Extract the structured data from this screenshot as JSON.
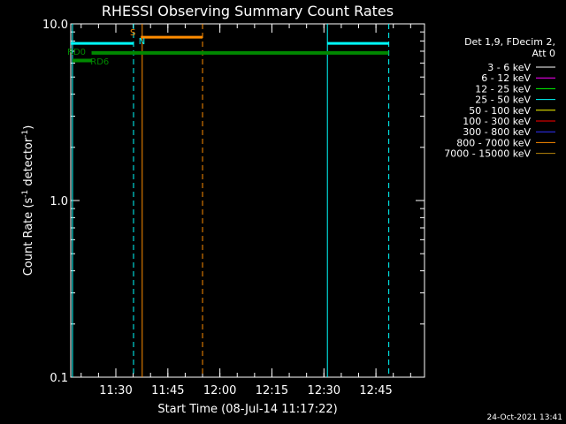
{
  "chart_data": {
    "type": "line",
    "title": "RHESSI Observing Summary Count Rates",
    "xlabel": "Start Time (08-Jul-14 11:17:22)",
    "ylabel_main": "Count Rate (s",
    "ylabel_sup1": "-1",
    "ylabel_mid": " detector",
    "ylabel_sup2": "-1",
    "ylabel_end": ")",
    "y_scale": "log",
    "ylim": [
      0.1,
      10.0
    ],
    "xlim_minutes": [
      11.2833,
      12.9833
    ],
    "x_ticks": [
      {
        "label": "11:30",
        "t": 11.5
      },
      {
        "label": "11:45",
        "t": 11.75
      },
      {
        "label": "12:00",
        "t": 12.0
      },
      {
        "label": "12:15",
        "t": 12.25
      },
      {
        "label": "12:30",
        "t": 12.5
      },
      {
        "label": "12:45",
        "t": 12.75
      }
    ],
    "y_ticks": [
      {
        "label": "0.1",
        "v": 0.1
      },
      {
        "label": "1.0",
        "v": 1.0
      },
      {
        "label": "10.0",
        "v": 10.0
      }
    ],
    "legend_header": [
      "Det 1,9, FDecim 2,",
      "Att 0"
    ],
    "legend_placement": "right",
    "legend": [
      {
        "label": "3 - 6 keV",
        "color": "#ffffff"
      },
      {
        "label": "6 - 12 keV",
        "color": "#ff00ff"
      },
      {
        "label": "12 - 25 keV",
        "color": "#00ff00"
      },
      {
        "label": "25 - 50 keV",
        "color": "#00ffff"
      },
      {
        "label": "50 - 100 keV",
        "color": "#ffff00"
      },
      {
        "label": "100 - 300 keV",
        "color": "#ff0000"
      },
      {
        "label": "300 - 800 keV",
        "color": "#3333ff"
      },
      {
        "label": "800 - 7000 keV",
        "color": "#ff8c00"
      },
      {
        "label": "7000 - 15000 keV",
        "color": "#b8860b"
      }
    ],
    "segments": [
      {
        "name": "cyan-level-1",
        "color": "#00ffff",
        "t0": 11.2833,
        "t1": 11.585,
        "v": 7.75,
        "w": 3
      },
      {
        "name": "cyan-level-2",
        "color": "#00ffff",
        "t0": 12.5167,
        "t1": 12.8117,
        "v": 7.75,
        "w": 3
      },
      {
        "name": "orange-level",
        "color": "#ff8c00",
        "t0": 11.62,
        "t1": 11.9167,
        "v": 8.4,
        "w": 3
      },
      {
        "name": "green-level-1",
        "color": "#008800",
        "t0": 11.3833,
        "t1": 12.8117,
        "v": 6.85,
        "w": 4
      },
      {
        "name": "green-level-2",
        "color": "#008800",
        "t0": 11.2917,
        "t1": 11.3833,
        "v": 6.2,
        "w": 4
      }
    ],
    "vlines": [
      {
        "name": "cyan-solid-1",
        "color": "#00ffff",
        "t": 11.2917,
        "dash": false
      },
      {
        "name": "cyan-dashed-1",
        "color": "#00ffff",
        "t": 11.585,
        "dash": true
      },
      {
        "name": "orange-solid",
        "color": "#ff8c00",
        "t": 11.6267,
        "dash": false
      },
      {
        "name": "orange-dashed",
        "color": "#ff8c00",
        "t": 11.9167,
        "dash": true
      },
      {
        "name": "cyan-solid-2",
        "color": "#00ffff",
        "t": 12.5167,
        "dash": false
      },
      {
        "name": "cyan-dashed-2",
        "color": "#00ffff",
        "t": 12.8117,
        "dash": true
      }
    ],
    "annotations": [
      {
        "text": "S",
        "color": "#ff8c00",
        "t": 11.585,
        "v": 9.0
      },
      {
        "text": "N",
        "color": "#00ffff",
        "t": 11.6267,
        "v": 8.05
      },
      {
        "text": "RD0",
        "color": "#008800",
        "t": 11.2833,
        "v": 7.0
      },
      {
        "text": "RD6",
        "color": "#008800",
        "t": 11.395,
        "v": 6.15
      }
    ]
  },
  "footer": {
    "timestamp": "24-Oct-2021 13:41"
  }
}
